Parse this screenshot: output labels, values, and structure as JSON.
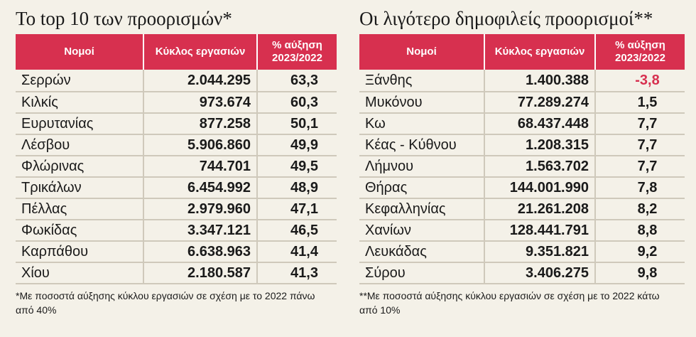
{
  "left": {
    "title": "Το top 10 των προορισμών*",
    "headers": [
      "Νομοί",
      "Κύκλος εργασιών",
      "% αύξηση 2023/2022"
    ],
    "rows": [
      {
        "name": "Σερρών",
        "value": "2.044.295",
        "pct": "63,3"
      },
      {
        "name": "Κιλκίς",
        "value": "973.674",
        "pct": "60,3"
      },
      {
        "name": "Ευρυτανίας",
        "value": "877.258",
        "pct": "50,1"
      },
      {
        "name": "Λέσβου",
        "value": "5.906.860",
        "pct": "49,9"
      },
      {
        "name": "Φλώρινας",
        "value": "744.701",
        "pct": "49,5"
      },
      {
        "name": "Τρικάλων",
        "value": "6.454.992",
        "pct": "48,9"
      },
      {
        "name": "Πέλλας",
        "value": "2.979.960",
        "pct": "47,1"
      },
      {
        "name": "Φωκίδας",
        "value": "3.347.121",
        "pct": "46,5"
      },
      {
        "name": "Καρπάθου",
        "value": "6.638.963",
        "pct": "41,4"
      },
      {
        "name": "Χίου",
        "value": "2.180.587",
        "pct": "41,3"
      }
    ],
    "footnote": "*Με ποσοστά αύξησης κύκλου εργασιών σε σχέση με το 2022 πάνω από 40%"
  },
  "right": {
    "title": "Οι λιγότερο δημοφιλείς προορισμοί**",
    "headers": [
      "Νομοί",
      "Κύκλος εργασιών",
      "% αύξηση 2023/2022"
    ],
    "rows": [
      {
        "name": "Ξάνθης",
        "value": "1.400.388",
        "pct": "-3,8",
        "negative": true
      },
      {
        "name": "Μυκόνου",
        "value": "77.289.274",
        "pct": "1,5"
      },
      {
        "name": "Κω",
        "value": "68.437.448",
        "pct": "7,7"
      },
      {
        "name": "Κέας - Κύθνου",
        "value": "1.208.315",
        "pct": "7,7"
      },
      {
        "name": "Λήμνου",
        "value": "1.563.702",
        "pct": "7,7"
      },
      {
        "name": "Θήρας",
        "value": "144.001.990",
        "pct": "7,8"
      },
      {
        "name": "Κεφαλληνίας",
        "value": "21.261.208",
        "pct": "8,2"
      },
      {
        "name": "Χανίων",
        "value": "128.441.791",
        "pct": "8,8"
      },
      {
        "name": "Λευκάδας",
        "value": "9.351.821",
        "pct": "9,2"
      },
      {
        "name": "Σύρου",
        "value": "3.406.275",
        "pct": "9,8"
      }
    ],
    "footnote": "**Με ποσοστά αύξησης κύκλου εργασιών σε σχέση με το 2022 κάτω από 10%"
  },
  "colors": {
    "header_bg": "#d7304f",
    "negative": "#d7304f",
    "page_bg": "#f4f1e8",
    "rule": "#cfc9bb"
  }
}
